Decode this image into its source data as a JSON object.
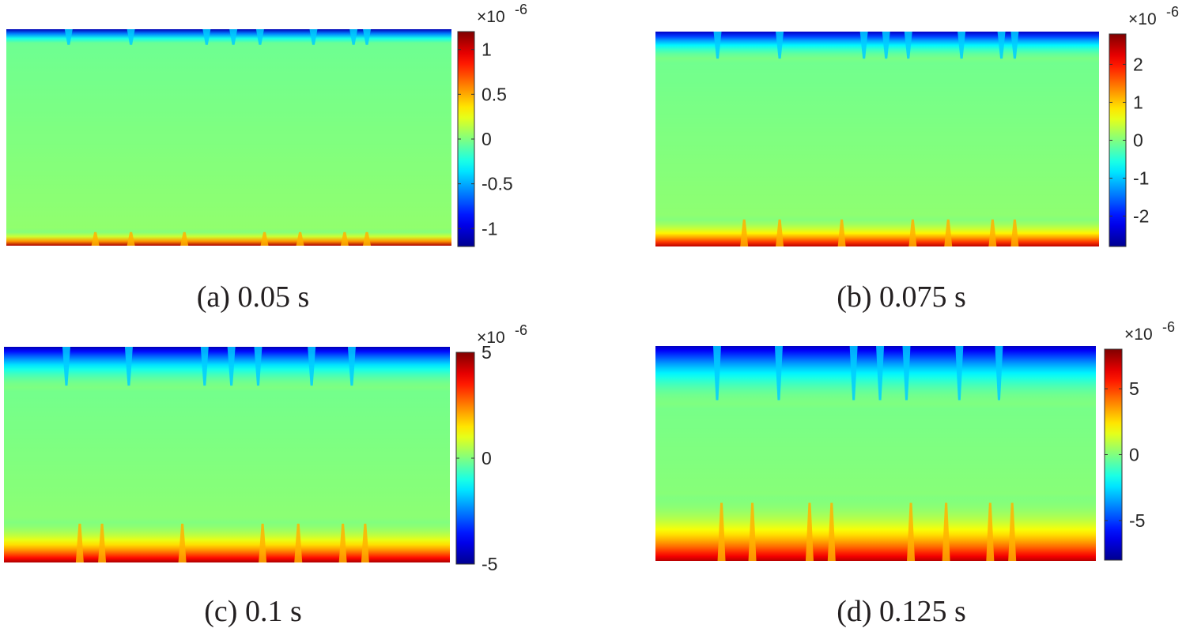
{
  "chart_data": [
    {
      "type": "heatmap",
      "caption": "(a) 0.05 s",
      "colorbar": {
        "multiplier": "×10",
        "exponent": "-6",
        "range": [
          -1.2,
          1.2
        ],
        "ticks": [
          -1,
          -0.5,
          0,
          0.5,
          1
        ],
        "tick_labels": [
          "-1",
          "-0.5",
          "0",
          "0.5",
          "1"
        ]
      },
      "field": {
        "top_value": -1.15,
        "bottom_value": 1.15,
        "interior_value": 0.0,
        "top_layer": 0.08,
        "bottom_layer": 0.07,
        "spikes_top": [
          0.14,
          0.28,
          0.45,
          0.51,
          0.57,
          0.69,
          0.78,
          0.81
        ],
        "spikes_bottom": [
          0.2,
          0.28,
          0.4,
          0.58,
          0.66,
          0.76,
          0.81
        ]
      }
    },
    {
      "type": "heatmap",
      "caption": "(b) 0.075 s",
      "colorbar": {
        "multiplier": "×10",
        "exponent": "-6",
        "range": [
          -2.8,
          2.8
        ],
        "ticks": [
          -2,
          -1,
          0,
          1,
          2
        ],
        "tick_labels": [
          "-2",
          "-1",
          "0",
          "1",
          "2"
        ]
      },
      "field": {
        "top_value": -2.6,
        "bottom_value": 2.6,
        "interior_value": 0.0,
        "top_layer": 0.14,
        "bottom_layer": 0.14,
        "spikes_top": [
          0.14,
          0.28,
          0.47,
          0.52,
          0.57,
          0.69,
          0.78,
          0.81
        ],
        "spikes_bottom": [
          0.2,
          0.28,
          0.42,
          0.58,
          0.66,
          0.76,
          0.81
        ]
      }
    },
    {
      "type": "heatmap",
      "caption": "(c) 0.1 s",
      "colorbar": {
        "multiplier": "×10",
        "exponent": "-6",
        "range": [
          -5,
          5
        ],
        "ticks": [
          -5,
          0,
          5
        ],
        "tick_labels": [
          "-5",
          "0",
          "5"
        ]
      },
      "field": {
        "top_value": -4.8,
        "bottom_value": 4.8,
        "interior_value": 0.0,
        "top_layer": 0.2,
        "bottom_layer": 0.2,
        "spikes_top": [
          0.14,
          0.28,
          0.45,
          0.51,
          0.57,
          0.69,
          0.78
        ],
        "spikes_bottom": [
          0.17,
          0.22,
          0.4,
          0.58,
          0.66,
          0.76,
          0.81
        ]
      }
    },
    {
      "type": "heatmap",
      "caption": "(d) 0.125 s",
      "colorbar": {
        "multiplier": "×10",
        "exponent": "-6",
        "range": [
          -8,
          8
        ],
        "ticks": [
          -5,
          0,
          5
        ],
        "tick_labels": [
          "-5",
          "0",
          "5"
        ]
      },
      "field": {
        "top_value": -7.5,
        "bottom_value": 7.5,
        "interior_value": 0.0,
        "top_layer": 0.28,
        "bottom_layer": 0.3,
        "spikes_top": [
          0.14,
          0.28,
          0.45,
          0.51,
          0.57,
          0.69,
          0.78
        ],
        "spikes_bottom": [
          0.15,
          0.22,
          0.35,
          0.4,
          0.58,
          0.66,
          0.76,
          0.81
        ]
      }
    }
  ],
  "colormap": [
    "#00008f",
    "#0000ff",
    "#00ffff",
    "#ffff00",
    "#ff0000",
    "#800000"
  ]
}
